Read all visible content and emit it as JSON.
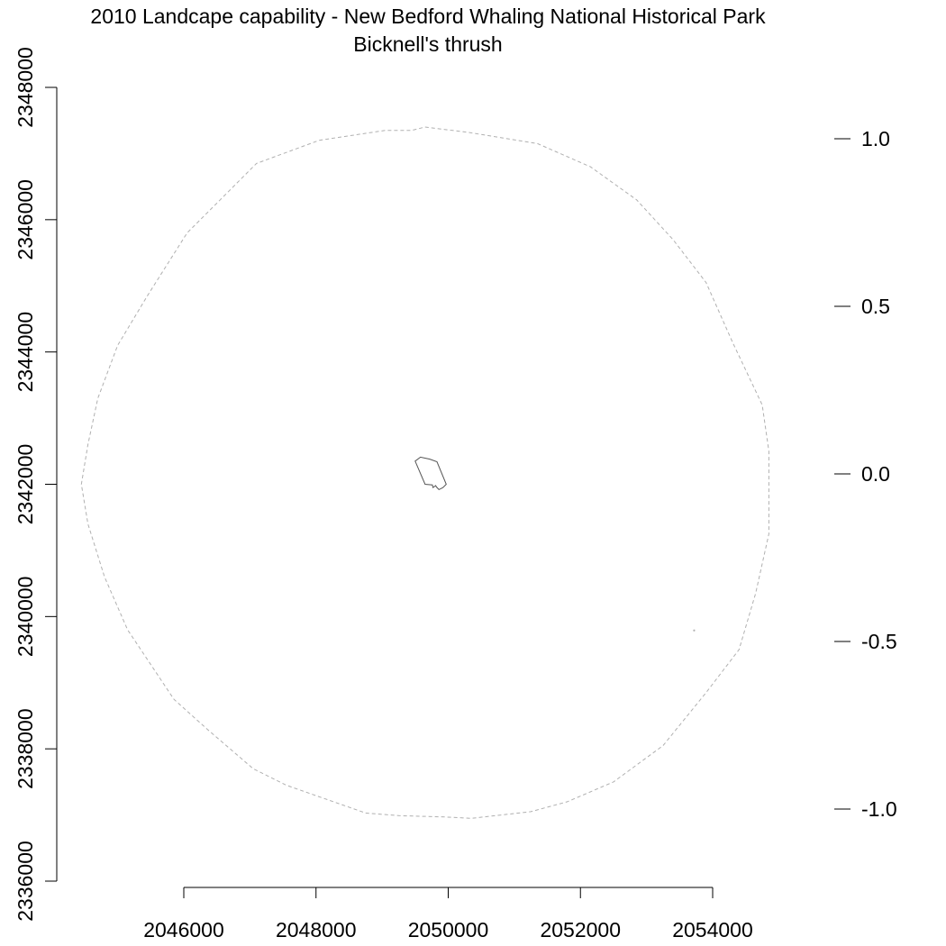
{
  "chart_data": {
    "type": "map",
    "title": "2010 Landcape capability - New Bedford Whaling National Historical Park",
    "subtitle": "Bicknell's thrush",
    "x_axis": {
      "ticks": [
        2046000,
        2048000,
        2050000,
        2052000,
        2054000
      ],
      "tick_labels": [
        "2046000",
        "2048000",
        "2050000",
        "2052000",
        "2054000"
      ]
    },
    "y_axis": {
      "ticks": [
        2336000,
        2338000,
        2340000,
        2342000,
        2344000,
        2346000,
        2348000
      ],
      "tick_labels": [
        "2336000",
        "2338000",
        "2340000",
        "2342000",
        "2344000",
        "2346000",
        "2348000"
      ]
    },
    "legend_axis": {
      "position": "right",
      "ticks": [
        1.0,
        0.5,
        0.0,
        -0.5,
        -1.0
      ],
      "tick_labels": [
        "1.0",
        "0.5",
        "0.0",
        "-0.5",
        "-1.0"
      ]
    },
    "buffer_outline": {
      "style": "dashed",
      "color": "#b0b0b0",
      "points": [
        [
          2049650,
          2347400
        ],
        [
          2050300,
          2347320
        ],
        [
          2051350,
          2347150
        ],
        [
          2052150,
          2346800
        ],
        [
          2052850,
          2346300
        ],
        [
          2053400,
          2345700
        ],
        [
          2053900,
          2345050
        ],
        [
          2054300,
          2344150
        ],
        [
          2054750,
          2343200
        ],
        [
          2054850,
          2342500
        ],
        [
          2054850,
          2341250
        ],
        [
          2054650,
          2340350
        ],
        [
          2054400,
          2339500
        ],
        [
          2053900,
          2338850
        ],
        [
          2053250,
          2338050
        ],
        [
          2052500,
          2337500
        ],
        [
          2051800,
          2337200
        ],
        [
          2051250,
          2337050
        ],
        [
          2050350,
          2336950
        ],
        [
          2049950,
          2336970
        ],
        [
          2049250,
          2336990
        ],
        [
          2048750,
          2337030
        ],
        [
          2047550,
          2337450
        ],
        [
          2047050,
          2337700
        ],
        [
          2046350,
          2338300
        ],
        [
          2045850,
          2338750
        ],
        [
          2045150,
          2339800
        ],
        [
          2044800,
          2340600
        ],
        [
          2044550,
          2341400
        ],
        [
          2044450,
          2342000
        ],
        [
          2044550,
          2342600
        ],
        [
          2044700,
          2343300
        ],
        [
          2045000,
          2344100
        ],
        [
          2045450,
          2344850
        ],
        [
          2046050,
          2345800
        ],
        [
          2046550,
          2346300
        ],
        [
          2047100,
          2346850
        ],
        [
          2048050,
          2347200
        ],
        [
          2049050,
          2347350
        ],
        [
          2049450,
          2347350
        ]
      ]
    },
    "park_boundary": {
      "style": "solid",
      "color": "#555555",
      "points": [
        [
          2049500,
          2342350
        ],
        [
          2049580,
          2342410
        ],
        [
          2049720,
          2342380
        ],
        [
          2049830,
          2342340
        ],
        [
          2049970,
          2342000
        ],
        [
          2049920,
          2341950
        ],
        [
          2049860,
          2341920
        ],
        [
          2049820,
          2341960
        ],
        [
          2049810,
          2341980
        ],
        [
          2049770,
          2341950
        ],
        [
          2049760,
          2341990
        ],
        [
          2049650,
          2342000
        ]
      ]
    },
    "small_mark": {
      "style": "dot",
      "color": "#b0b0b0",
      "points": [
        [
          2053720,
          2339790
        ]
      ]
    }
  }
}
